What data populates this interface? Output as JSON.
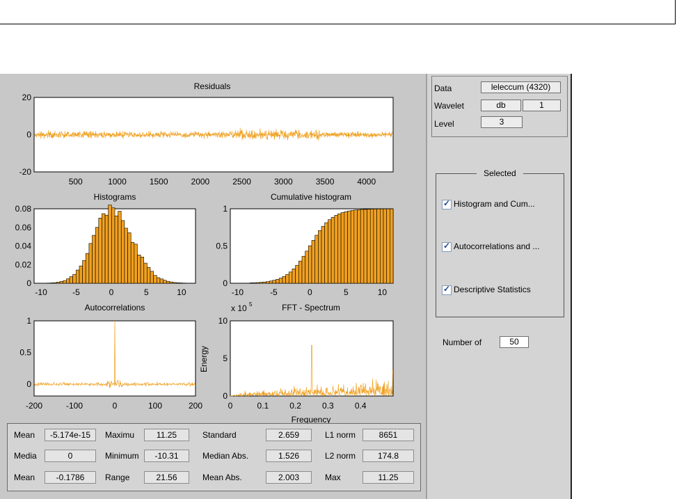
{
  "plots": {
    "residuals": {
      "title": "Residuals",
      "y_ticks": [
        "20",
        "0",
        "-20"
      ],
      "x_ticks": [
        "500",
        "1000",
        "1500",
        "2000",
        "2500",
        "3000",
        "3500",
        "4000"
      ]
    },
    "histogram": {
      "title": "Histograms",
      "y_ticks": [
        "0.08",
        "0.06",
        "0.04",
        "0.02",
        "0"
      ],
      "x_ticks": [
        "-10",
        "-5",
        "0",
        "5",
        "10"
      ]
    },
    "cumulative": {
      "title": "Cumulative histogram",
      "y_ticks": [
        "1",
        "0.5",
        "0"
      ],
      "x_ticks": [
        "-10",
        "-5",
        "0",
        "5",
        "10"
      ]
    },
    "autocorr": {
      "title": "Autocorrelations",
      "y_ticks": [
        "1",
        "0.5",
        "0"
      ],
      "x_ticks": [
        "-200",
        "-100",
        "0",
        "100",
        "200"
      ]
    },
    "fft": {
      "title": "FFT - Spectrum",
      "exponent_base": "x 10",
      "exponent": "5",
      "y_ticks": [
        "10",
        "5",
        "0"
      ],
      "x_ticks": [
        "0",
        "0.1",
        "0.2",
        "0.3",
        "0.4"
      ],
      "ylabel": "Energy",
      "xlabel": "Frequency"
    },
    "series_color": "#f0a020"
  },
  "info": {
    "data_label": "Data",
    "data_value": "leleccum  (4320)",
    "wavelet_label": "Wavelet",
    "wavelet_family": "db",
    "wavelet_order": "1",
    "level_label": "Level",
    "level_value": "3"
  },
  "selected": {
    "title": "Selected",
    "items": [
      {
        "label": "Histogram and Cum...",
        "checked": true
      },
      {
        "label": "Autocorrelations and ...",
        "checked": true
      },
      {
        "label": "Descriptive Statistics",
        "checked": true
      }
    ]
  },
  "number_of": {
    "label": "Number of",
    "value": "50"
  },
  "stats": [
    {
      "label": "Mean",
      "value": "-5.174e-15"
    },
    {
      "label": "Maximu",
      "value": "11.25"
    },
    {
      "label": "Standard",
      "value": "2.659"
    },
    {
      "label": "L1 norm",
      "value": "8651"
    },
    {
      "label": "Media",
      "value": "0"
    },
    {
      "label": "Minimum",
      "value": "-10.31"
    },
    {
      "label": "Median Abs.",
      "value": "1.526"
    },
    {
      "label": "L2 norm",
      "value": "174.8"
    },
    {
      "label": "Mean",
      "value": "-0.1786"
    },
    {
      "label": "Range",
      "value": "21.56"
    },
    {
      "label": "Mean Abs.",
      "value": "2.003"
    },
    {
      "label": "Max",
      "value": "11.25"
    }
  ]
}
